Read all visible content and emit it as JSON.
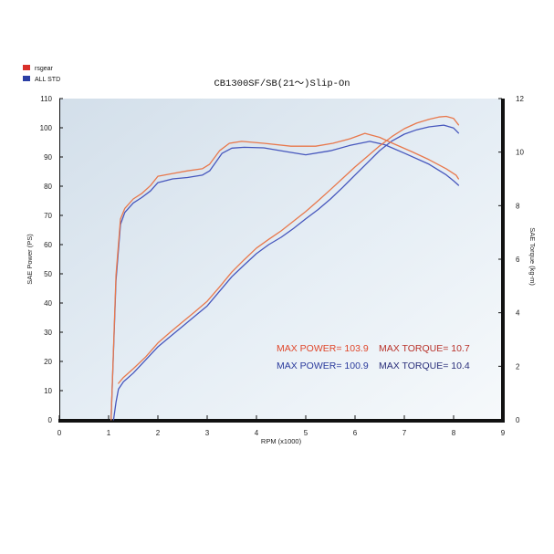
{
  "chart_data": {
    "type": "line",
    "title": "CB1300SF/SB(21～)Slip-On",
    "xlabel": "RPM (x1000)",
    "ylabel": "SAE Power (PS)",
    "y2label": "SAE Torque (kg-m)",
    "xlim": [
      0,
      9
    ],
    "ylim": [
      0,
      110
    ],
    "y2lim": [
      0,
      12
    ],
    "x_ticks": [
      0,
      1,
      2,
      3,
      4,
      5,
      6,
      7,
      8,
      9
    ],
    "y_ticks": [
      0,
      10,
      20,
      30,
      40,
      50,
      60,
      70,
      80,
      90,
      100,
      110
    ],
    "y2_ticks": [
      0,
      2,
      4,
      6,
      8,
      10,
      12
    ],
    "grid": false,
    "legend": {
      "placement": "top-left",
      "entries": [
        {
          "label": "rsgear",
          "color": "#d9302a"
        },
        {
          "label": "ALL STD",
          "color": "#2b3fa5"
        }
      ]
    },
    "annotations": {
      "rsgear_power": {
        "text": "MAX POWER= 103.9",
        "color": "#e0472b"
      },
      "rsgear_torque": {
        "text": "MAX TORQUE= 10.7",
        "color": "#b8322a"
      },
      "std_power": {
        "text": "MAX POWER= 100.9",
        "color": "#2a3a9c"
      },
      "std_torque": {
        "text": "MAX TORQUE= 10.4",
        "color": "#2a2f7a"
      }
    },
    "series": [
      {
        "name": "ALL STD",
        "axis": "y2",
        "color": "#4757bd",
        "x": [
          1.05,
          1.15,
          1.24,
          1.33,
          1.5,
          1.67,
          1.85,
          2.0,
          2.3,
          2.6,
          2.9,
          3.05,
          3.3,
          3.5,
          3.75,
          4.15,
          4.6,
          5.0,
          5.5,
          5.9,
          6.3,
          6.6,
          7.0,
          7.5,
          7.85,
          8.0,
          8.1
        ],
        "y": [
          0,
          5.2,
          7.3,
          7.75,
          8.1,
          8.3,
          8.55,
          8.86,
          9.0,
          9.05,
          9.14,
          9.3,
          9.95,
          10.15,
          10.18,
          10.16,
          10.02,
          9.9,
          10.05,
          10.25,
          10.4,
          10.28,
          9.96,
          9.55,
          9.15,
          8.93,
          8.76
        ]
      },
      {
        "name": "ALL STD",
        "axis": "y",
        "color": "#4757bd",
        "x": [
          1.1,
          1.15,
          1.2,
          1.3,
          1.5,
          1.75,
          2.0,
          2.25,
          2.5,
          2.75,
          3.0,
          3.25,
          3.5,
          3.75,
          4.0,
          4.25,
          4.5,
          4.75,
          5.0,
          5.25,
          5.5,
          5.75,
          6.0,
          6.25,
          6.5,
          6.75,
          7.0,
          7.25,
          7.5,
          7.8,
          8.0,
          8.1
        ],
        "y": [
          0,
          6.0,
          10.5,
          13.0,
          16.0,
          20.5,
          25.0,
          28.5,
          32.0,
          35.5,
          39.0,
          44.0,
          49.0,
          53.0,
          56.9,
          60.0,
          62.5,
          65.5,
          68.8,
          72.0,
          75.6,
          79.6,
          83.8,
          88.0,
          92.2,
          95.5,
          97.8,
          99.3,
          100.3,
          100.9,
          99.9,
          98.2
        ]
      },
      {
        "name": "rsgear",
        "axis": "y2",
        "color": "#e8784c",
        "x": [
          1.05,
          1.15,
          1.24,
          1.33,
          1.5,
          1.67,
          1.85,
          2.0,
          2.3,
          2.6,
          2.9,
          3.05,
          3.25,
          3.45,
          3.7,
          4.15,
          4.7,
          5.2,
          5.55,
          5.9,
          6.2,
          6.5,
          6.8,
          7.15,
          7.5,
          7.85,
          8.05,
          8.1
        ],
        "y": [
          0,
          5.4,
          7.5,
          7.9,
          8.25,
          8.45,
          8.75,
          9.1,
          9.2,
          9.3,
          9.38,
          9.55,
          10.05,
          10.33,
          10.4,
          10.33,
          10.22,
          10.22,
          10.33,
          10.5,
          10.7,
          10.55,
          10.3,
          10.02,
          9.72,
          9.38,
          9.14,
          9.0
        ]
      },
      {
        "name": "rsgear",
        "axis": "y",
        "color": "#e8784c",
        "x": [
          1.2,
          1.3,
          1.5,
          1.75,
          2.0,
          2.25,
          2.5,
          2.75,
          3.0,
          3.25,
          3.5,
          3.75,
          4.0,
          4.25,
          4.5,
          4.75,
          5.0,
          5.25,
          5.5,
          5.75,
          6.0,
          6.25,
          6.5,
          6.75,
          7.0,
          7.25,
          7.5,
          7.7,
          7.85,
          8.0,
          8.1
        ],
        "y": [
          12.5,
          14.5,
          17.5,
          21.5,
          26.3,
          30.0,
          33.5,
          37.0,
          40.6,
          45.5,
          50.6,
          54.8,
          58.8,
          61.8,
          64.7,
          68.0,
          71.3,
          75.0,
          78.8,
          82.7,
          86.6,
          90.2,
          93.8,
          97.0,
          99.7,
          101.6,
          102.9,
          103.7,
          103.9,
          103.2,
          101.0
        ]
      }
    ]
  }
}
